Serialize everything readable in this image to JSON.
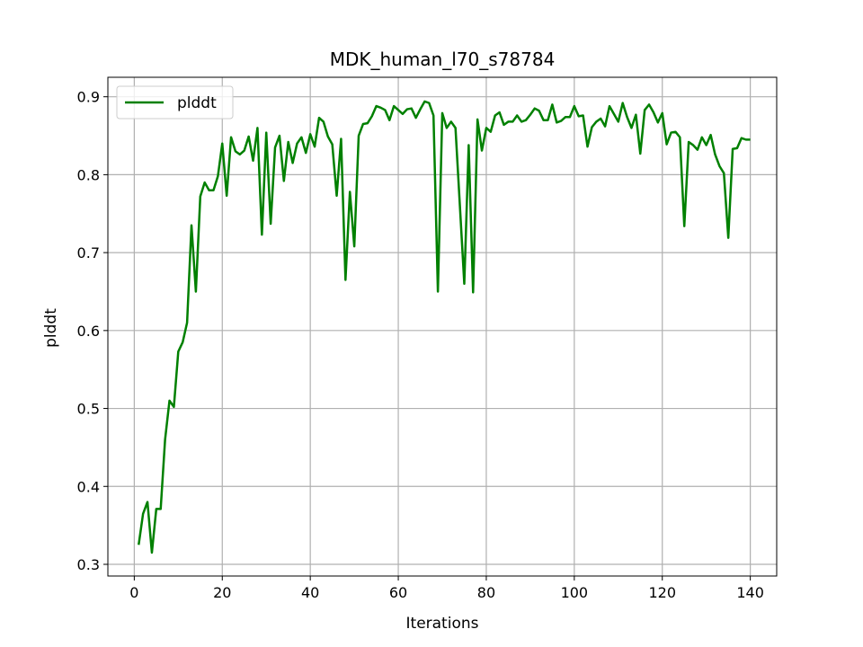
{
  "chart_data": {
    "type": "line",
    "title": "MDK_human_l70_s78784",
    "xlabel": "Iterations",
    "ylabel": "plddt",
    "xlim": [
      -6,
      146
    ],
    "ylim": [
      0.285,
      0.925
    ],
    "xticks": [
      0,
      20,
      40,
      60,
      80,
      100,
      120,
      140
    ],
    "yticks": [
      0.3,
      0.4,
      0.5,
      0.6,
      0.7,
      0.8,
      0.9
    ],
    "grid": true,
    "legend_position": "upper-left",
    "series": [
      {
        "name": "plddt",
        "color": "#008000",
        "x": [
          1,
          2,
          3,
          4,
          5,
          6,
          7,
          8,
          9,
          10,
          11,
          12,
          13,
          14,
          15,
          16,
          17,
          18,
          19,
          20,
          21,
          22,
          23,
          24,
          25,
          26,
          27,
          28,
          29,
          30,
          31,
          32,
          33,
          34,
          35,
          36,
          37,
          38,
          39,
          40,
          41,
          42,
          43,
          44,
          45,
          46,
          47,
          48,
          49,
          50,
          51,
          52,
          53,
          54,
          55,
          56,
          57,
          58,
          59,
          60,
          61,
          62,
          63,
          64,
          65,
          66,
          67,
          68,
          69,
          70,
          71,
          72,
          73,
          74,
          75,
          76,
          77,
          78,
          79,
          80,
          81,
          82,
          83,
          84,
          85,
          86,
          87,
          88,
          89,
          90,
          91,
          92,
          93,
          94,
          95,
          96,
          97,
          98,
          99,
          100,
          101,
          102,
          103,
          104,
          105,
          106,
          107,
          108,
          109,
          110,
          111,
          112,
          113,
          114,
          115,
          116,
          117,
          118,
          119,
          120,
          121,
          122,
          123,
          124,
          125,
          126,
          127,
          128,
          129,
          130,
          131,
          132,
          133,
          134,
          135,
          136,
          137,
          138,
          139,
          140
        ],
        "values": [
          0.325,
          0.365,
          0.38,
          0.315,
          0.371,
          0.371,
          0.46,
          0.51,
          0.502,
          0.573,
          0.585,
          0.61,
          0.735,
          0.65,
          0.772,
          0.79,
          0.78,
          0.78,
          0.798,
          0.84,
          0.773,
          0.848,
          0.83,
          0.826,
          0.831,
          0.849,
          0.818,
          0.86,
          0.723,
          0.854,
          0.737,
          0.835,
          0.85,
          0.792,
          0.842,
          0.815,
          0.84,
          0.848,
          0.828,
          0.852,
          0.836,
          0.873,
          0.868,
          0.849,
          0.839,
          0.773,
          0.846,
          0.665,
          0.778,
          0.708,
          0.85,
          0.865,
          0.866,
          0.875,
          0.888,
          0.886,
          0.883,
          0.87,
          0.888,
          0.883,
          0.878,
          0.884,
          0.885,
          0.873,
          0.884,
          0.894,
          0.892,
          0.876,
          0.65,
          0.879,
          0.86,
          0.868,
          0.86,
          0.76,
          0.66,
          0.838,
          0.649,
          0.871,
          0.831,
          0.86,
          0.855,
          0.876,
          0.88,
          0.864,
          0.868,
          0.868,
          0.876,
          0.868,
          0.87,
          0.877,
          0.885,
          0.882,
          0.87,
          0.87,
          0.89,
          0.867,
          0.869,
          0.874,
          0.874,
          0.888,
          0.875,
          0.876,
          0.836,
          0.861,
          0.868,
          0.872,
          0.862,
          0.888,
          0.878,
          0.868,
          0.892,
          0.874,
          0.86,
          0.877,
          0.827,
          0.883,
          0.89,
          0.88,
          0.867,
          0.879,
          0.839,
          0.854,
          0.855,
          0.848,
          0.734,
          0.842,
          0.838,
          0.832,
          0.848,
          0.838,
          0.851,
          0.826,
          0.811,
          0.802,
          0.719,
          0.833,
          0.834,
          0.847,
          0.845,
          0.845
        ]
      }
    ]
  }
}
